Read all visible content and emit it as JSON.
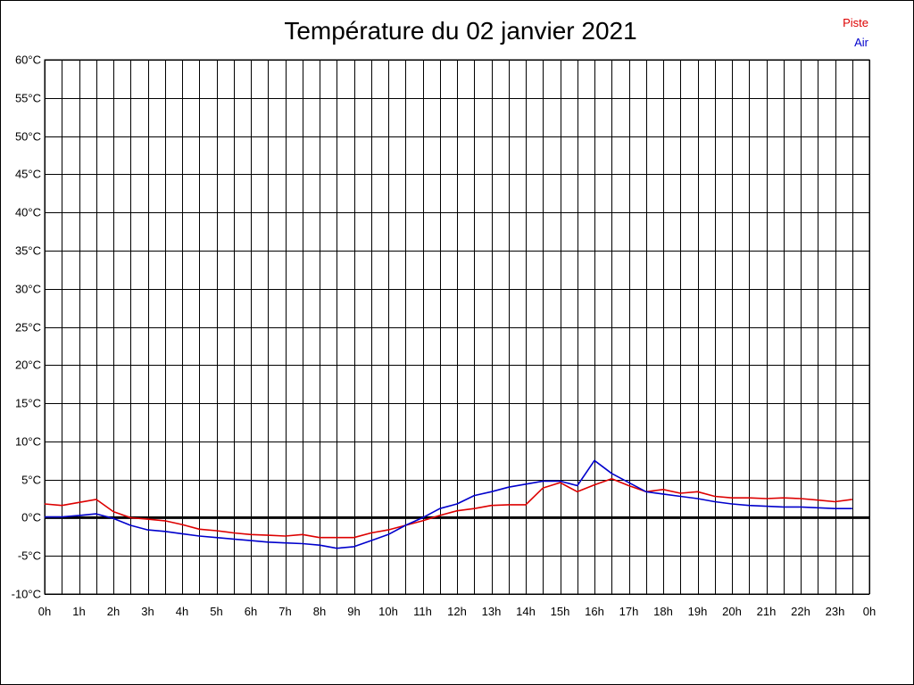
{
  "chart_data": {
    "type": "line",
    "title": "Température du 02 janvier 2021",
    "xlabel": "",
    "ylabel": "",
    "ylim": [
      -10,
      60
    ],
    "xlim": [
      0,
      24
    ],
    "y_ticks": [
      "-10°C",
      "-5°C",
      "0°C",
      "5°C",
      "10°C",
      "15°C",
      "20°C",
      "25°C",
      "30°C",
      "35°C",
      "40°C",
      "45°C",
      "50°C",
      "55°C",
      "60°C"
    ],
    "x_ticks": [
      "0h",
      "1h",
      "2h",
      "3h",
      "4h",
      "5h",
      "6h",
      "7h",
      "8h",
      "9h",
      "10h",
      "11h",
      "12h",
      "13h",
      "14h",
      "15h",
      "16h",
      "17h",
      "18h",
      "19h",
      "20h",
      "21h",
      "22h",
      "23h",
      "0h"
    ],
    "grid": true,
    "zero_line": true,
    "legend_position": "top-right",
    "x": [
      0,
      0.5,
      1,
      1.5,
      2,
      2.5,
      3,
      3.5,
      4,
      4.5,
      5,
      5.5,
      6,
      6.5,
      7,
      7.5,
      8,
      8.5,
      9,
      9.5,
      10,
      10.5,
      11,
      11.5,
      12,
      12.5,
      13,
      13.5,
      14,
      14.5,
      15,
      15.5,
      16,
      16.5,
      17,
      17.5,
      18,
      18.5,
      19,
      19.5,
      20,
      20.5,
      21,
      21.5,
      22,
      22.5,
      23,
      23.5
    ],
    "series": [
      {
        "name": "Piste",
        "color": "#dd0000",
        "values": [
          1.8,
          1.6,
          2.0,
          2.4,
          0.8,
          0.0,
          -0.2,
          -0.4,
          -0.9,
          -1.5,
          -1.7,
          -2.0,
          -2.2,
          -2.3,
          -2.4,
          -2.2,
          -2.6,
          -2.6,
          -2.6,
          -2.0,
          -1.6,
          -1.0,
          -0.4,
          0.3,
          0.9,
          1.2,
          1.6,
          1.7,
          1.7,
          3.9,
          4.6,
          3.4,
          4.3,
          5.1,
          4.2,
          3.4,
          3.7,
          3.2,
          3.4,
          2.8,
          2.6,
          2.6,
          2.5,
          2.6,
          2.5,
          2.3,
          2.1,
          2.4
        ]
      },
      {
        "name": "Air",
        "color": "#0000cc",
        "values": [
          0.1,
          0.1,
          0.3,
          0.5,
          -0.1,
          -1.0,
          -1.6,
          -1.8,
          -2.1,
          -2.4,
          -2.6,
          -2.8,
          -3.0,
          -3.2,
          -3.3,
          -3.4,
          -3.6,
          -4.0,
          -3.8,
          -3.0,
          -2.2,
          -1.0,
          0.0,
          1.2,
          1.8,
          2.9,
          3.4,
          4.0,
          4.4,
          4.8,
          4.8,
          4.2,
          7.5,
          5.8,
          4.6,
          3.4,
          3.1,
          2.8,
          2.5,
          2.1,
          1.8,
          1.6,
          1.5,
          1.4,
          1.4,
          1.3,
          1.2,
          1.2
        ]
      }
    ]
  }
}
